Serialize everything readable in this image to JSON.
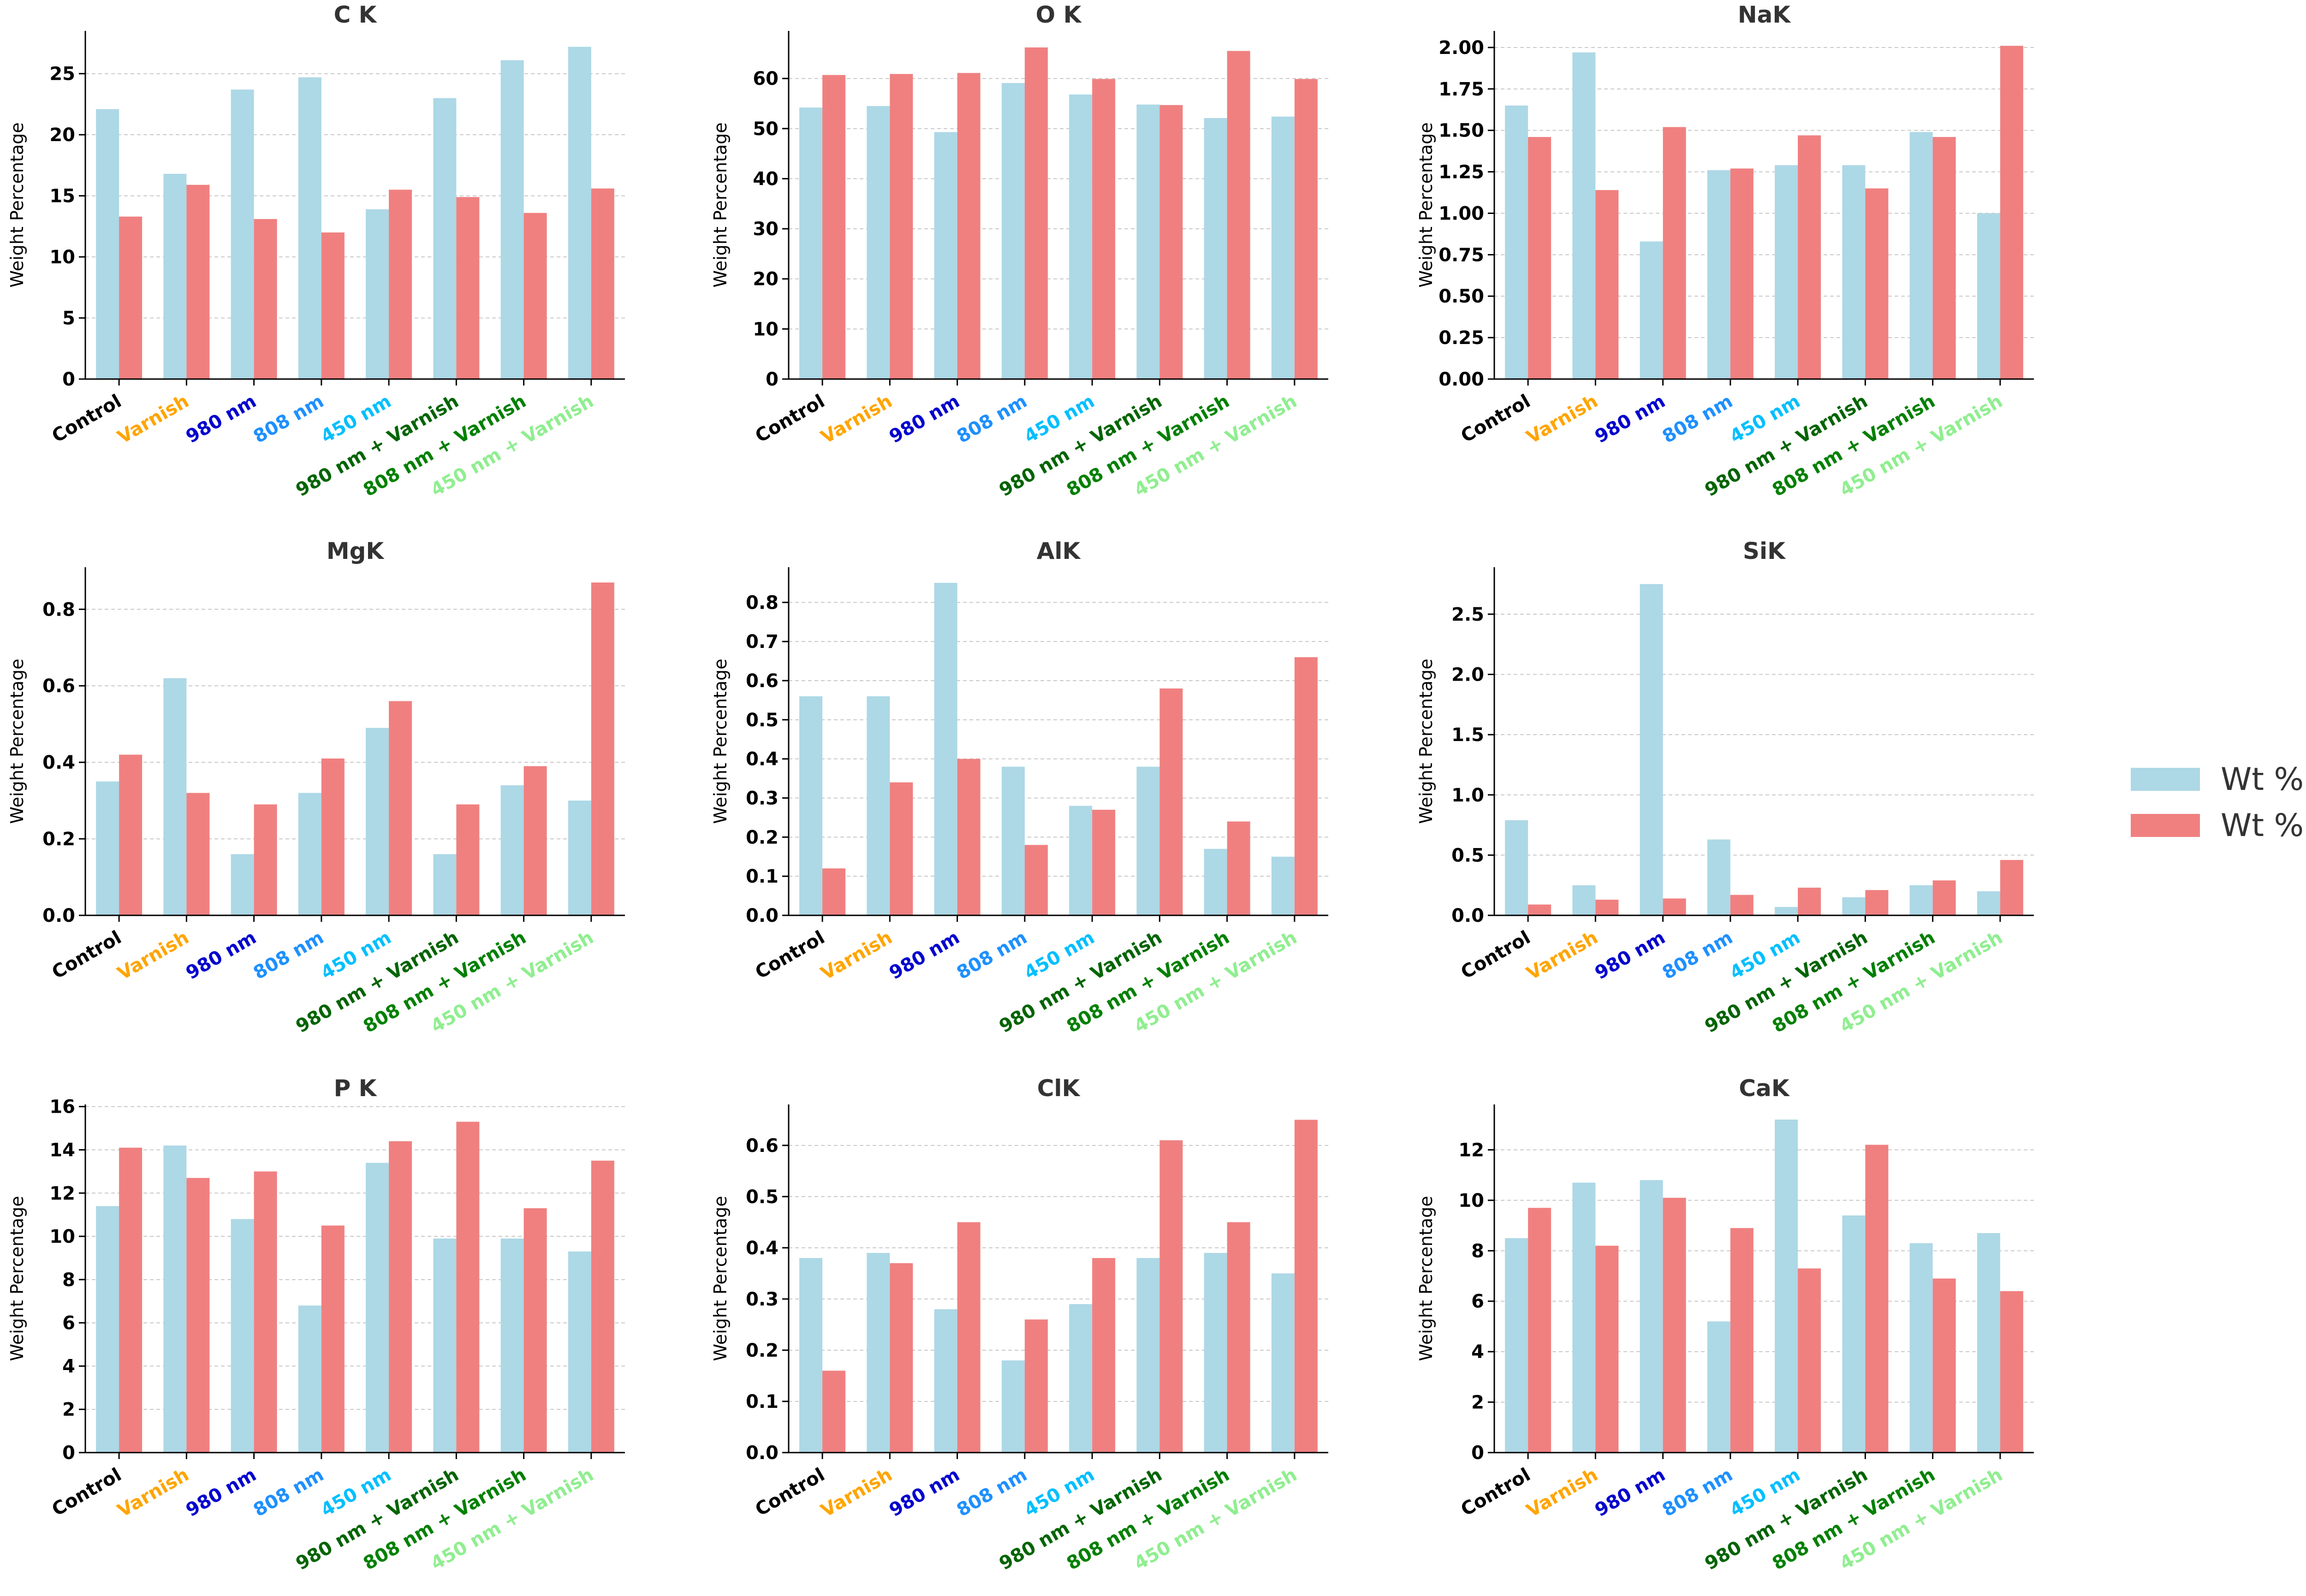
{
  "chart_data": [
    {
      "type": "bar",
      "title": "C K",
      "ylabel": "Weight Percentage",
      "ylim": [
        0,
        28.5
      ],
      "yticks": [
        0,
        5,
        10,
        15,
        20,
        25
      ],
      "tick_format": "int",
      "categories": [
        "Control",
        "Varnish",
        "980 nm",
        "808 nm",
        "450 nm",
        "980 nm + Varnish",
        "808 nm + Varnish",
        "450 nm + Varnish"
      ],
      "series": [
        {
          "name": "Wt % TX",
          "values": [
            22.1,
            16.8,
            23.7,
            24.7,
            13.9,
            23.0,
            26.1,
            27.2
          ]
        },
        {
          "name": "Wt % PH",
          "values": [
            13.3,
            15.9,
            13.1,
            12.0,
            15.5,
            14.9,
            13.6,
            15.6
          ]
        }
      ]
    },
    {
      "type": "bar",
      "title": "O K",
      "ylabel": "Weight Percentage",
      "ylim": [
        0,
        69.5
      ],
      "yticks": [
        0,
        10,
        20,
        30,
        40,
        50,
        60
      ],
      "tick_format": "int",
      "categories": [
        "Control",
        "Varnish",
        "980 nm",
        "808 nm",
        "450 nm",
        "980 nm + Varnish",
        "808 nm + Varnish",
        "450 nm + Varnish"
      ],
      "series": [
        {
          "name": "Wt % TX",
          "values": [
            54.2,
            54.5,
            49.3,
            59.1,
            56.8,
            54.8,
            52.1,
            52.4
          ]
        },
        {
          "name": "Wt % PH",
          "values": [
            60.7,
            60.9,
            61.1,
            66.2,
            59.9,
            54.7,
            65.5,
            59.9
          ]
        }
      ]
    },
    {
      "type": "bar",
      "title": "NaK",
      "ylabel": "Weight Percentage",
      "ylim": [
        0,
        2.1
      ],
      "yticks": [
        0,
        0.25,
        0.5,
        0.75,
        1.0,
        1.25,
        1.5,
        1.75,
        2.0
      ],
      "tick_format": "2dp",
      "categories": [
        "Control",
        "Varnish",
        "980 nm",
        "808 nm",
        "450 nm",
        "980 nm + Varnish",
        "808 nm + Varnish",
        "450 nm + Varnish"
      ],
      "series": [
        {
          "name": "Wt % TX",
          "values": [
            1.65,
            1.97,
            0.83,
            1.26,
            1.29,
            1.29,
            1.49,
            1.0
          ]
        },
        {
          "name": "Wt % PH",
          "values": [
            1.46,
            1.14,
            1.52,
            1.27,
            1.47,
            1.15,
            1.46,
            2.01
          ]
        }
      ]
    },
    {
      "type": "bar",
      "title": "MgK",
      "ylabel": "Weight Percentage",
      "ylim": [
        0,
        0.91
      ],
      "yticks": [
        0,
        0.2,
        0.4,
        0.6,
        0.8
      ],
      "tick_format": "1dp",
      "categories": [
        "Control",
        "Varnish",
        "980 nm",
        "808 nm",
        "450 nm",
        "980 nm + Varnish",
        "808 nm + Varnish",
        "450 nm + Varnish"
      ],
      "series": [
        {
          "name": "Wt % TX",
          "values": [
            0.35,
            0.62,
            0.16,
            0.32,
            0.49,
            0.16,
            0.34,
            0.3
          ]
        },
        {
          "name": "Wt % PH",
          "values": [
            0.42,
            0.32,
            0.29,
            0.41,
            0.56,
            0.29,
            0.39,
            0.87
          ]
        }
      ]
    },
    {
      "type": "bar",
      "title": "AlK",
      "ylabel": "Weight Percentage",
      "ylim": [
        0,
        0.89
      ],
      "yticks": [
        0,
        0.1,
        0.2,
        0.3,
        0.4,
        0.5,
        0.6,
        0.7,
        0.8
      ],
      "tick_format": "1dp",
      "categories": [
        "Control",
        "Varnish",
        "980 nm",
        "808 nm",
        "450 nm",
        "980 nm + Varnish",
        "808 nm + Varnish",
        "450 nm + Varnish"
      ],
      "series": [
        {
          "name": "Wt % TX",
          "values": [
            0.56,
            0.56,
            0.85,
            0.38,
            0.28,
            0.38,
            0.17,
            0.15
          ]
        },
        {
          "name": "Wt % PH",
          "values": [
            0.12,
            0.34,
            0.4,
            0.18,
            0.27,
            0.58,
            0.24,
            0.66
          ]
        }
      ]
    },
    {
      "type": "bar",
      "title": "SiK",
      "ylabel": "Weight Percentage",
      "ylim": [
        0,
        2.89
      ],
      "yticks": [
        0,
        0.5,
        1.0,
        1.5,
        2.0,
        2.5
      ],
      "tick_format": "1dp",
      "categories": [
        "Control",
        "Varnish",
        "980 nm",
        "808 nm",
        "450 nm",
        "980 nm + Varnish",
        "808 nm + Varnish",
        "450 nm + Varnish"
      ],
      "series": [
        {
          "name": "Wt % TX",
          "values": [
            0.79,
            0.25,
            2.75,
            0.63,
            0.07,
            0.15,
            0.25,
            0.2
          ]
        },
        {
          "name": "Wt % PH",
          "values": [
            0.09,
            0.13,
            0.14,
            0.17,
            0.23,
            0.21,
            0.29,
            0.46
          ]
        }
      ]
    },
    {
      "type": "bar",
      "title": "P K",
      "ylabel": "Weight Percentage",
      "ylim": [
        0,
        16.1
      ],
      "yticks": [
        0,
        2,
        4,
        6,
        8,
        10,
        12,
        14,
        16
      ],
      "tick_format": "int",
      "categories": [
        "Control",
        "Varnish",
        "980 nm",
        "808 nm",
        "450 nm",
        "980 nm + Varnish",
        "808 nm + Varnish",
        "450 nm + Varnish"
      ],
      "series": [
        {
          "name": "Wt % TX",
          "values": [
            11.4,
            14.2,
            10.8,
            6.8,
            13.4,
            9.9,
            9.9,
            9.3
          ]
        },
        {
          "name": "Wt % PH",
          "values": [
            14.1,
            12.7,
            13.0,
            10.5,
            14.4,
            15.3,
            11.3,
            13.5
          ]
        }
      ]
    },
    {
      "type": "bar",
      "title": "ClK",
      "ylabel": "Weight Percentage",
      "ylim": [
        0,
        0.68
      ],
      "yticks": [
        0,
        0.1,
        0.2,
        0.3,
        0.4,
        0.5,
        0.6
      ],
      "tick_format": "1dp",
      "categories": [
        "Control",
        "Varnish",
        "980 nm",
        "808 nm",
        "450 nm",
        "980 nm + Varnish",
        "808 nm + Varnish",
        "450 nm + Varnish"
      ],
      "series": [
        {
          "name": "Wt % TX",
          "values": [
            0.38,
            0.39,
            0.28,
            0.18,
            0.29,
            0.38,
            0.39,
            0.35
          ]
        },
        {
          "name": "Wt % PH",
          "values": [
            0.16,
            0.37,
            0.45,
            0.26,
            0.38,
            0.61,
            0.45,
            0.65
          ]
        }
      ]
    },
    {
      "type": "bar",
      "title": "CaK",
      "ylabel": "Weight Percentage",
      "ylim": [
        0,
        13.8
      ],
      "yticks": [
        0,
        2,
        4,
        6,
        8,
        10,
        12
      ],
      "tick_format": "int",
      "categories": [
        "Control",
        "Varnish",
        "980 nm",
        "808 nm",
        "450 nm",
        "980 nm + Varnish",
        "808 nm + Varnish",
        "450 nm + Varnish"
      ],
      "series": [
        {
          "name": "Wt % TX",
          "values": [
            8.5,
            10.7,
            10.8,
            5.2,
            13.2,
            9.4,
            8.3,
            8.7
          ]
        },
        {
          "name": "Wt % PH",
          "values": [
            9.7,
            8.2,
            10.1,
            8.9,
            7.3,
            12.2,
            6.9,
            6.4
          ]
        }
      ]
    }
  ],
  "legend": {
    "placement": "right",
    "items": [
      {
        "label": "Wt % TX",
        "color": "#add8e6"
      },
      {
        "label": "Wt % PH",
        "color": "#f08080"
      }
    ]
  },
  "category_colors": [
    "#000000",
    "#ffa500",
    "#0000cd",
    "#1e90ff",
    "#00bfff",
    "#006400",
    "#008000",
    "#90ee90"
  ],
  "series_colors": [
    "#add8e6",
    "#f08080"
  ]
}
